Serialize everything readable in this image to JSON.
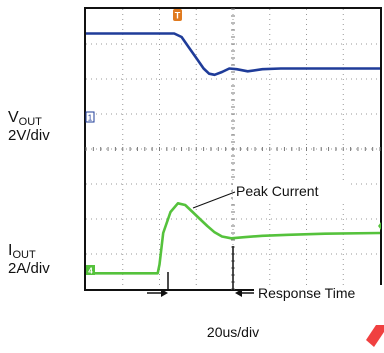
{
  "chart_data": {
    "type": "line",
    "xlabel": "20us/div",
    "x_divisions": 8,
    "y_divisions": 8,
    "grid": true,
    "trigger_marker": "T",
    "series": [
      {
        "channel": "1",
        "label_main": "V",
        "label_sub": "OUT",
        "scale": "2V/div",
        "color": "#1f3c99",
        "x_div": [
          0,
          2.4,
          2.6,
          2.8,
          3.0,
          3.2,
          3.35,
          3.5,
          3.7,
          3.9,
          4.1,
          4.4,
          4.8,
          5.3,
          6,
          7,
          8
        ],
        "y_div": [
          7.3,
          7.3,
          7.2,
          6.9,
          6.6,
          6.3,
          6.15,
          6.12,
          6.2,
          6.3,
          6.28,
          6.22,
          6.28,
          6.3,
          6.3,
          6.3,
          6.3
        ]
      },
      {
        "channel": "4",
        "label_main": "I",
        "label_sub": "OUT",
        "scale": "2A/div",
        "color": "#55c23c",
        "x_div": [
          0,
          1.95,
          2.0,
          2.1,
          2.3,
          2.5,
          2.7,
          2.9,
          3.1,
          3.3,
          3.5,
          3.7,
          3.95,
          4.3,
          4.8,
          5.5,
          6.5,
          8
        ],
        "y_div": [
          0.45,
          0.45,
          0.7,
          1.6,
          2.2,
          2.45,
          2.4,
          2.2,
          2.0,
          1.8,
          1.62,
          1.5,
          1.45,
          1.48,
          1.52,
          1.55,
          1.58,
          1.6
        ]
      }
    ],
    "annotations": {
      "peak": "Peak Current",
      "response": "Response Time"
    }
  }
}
